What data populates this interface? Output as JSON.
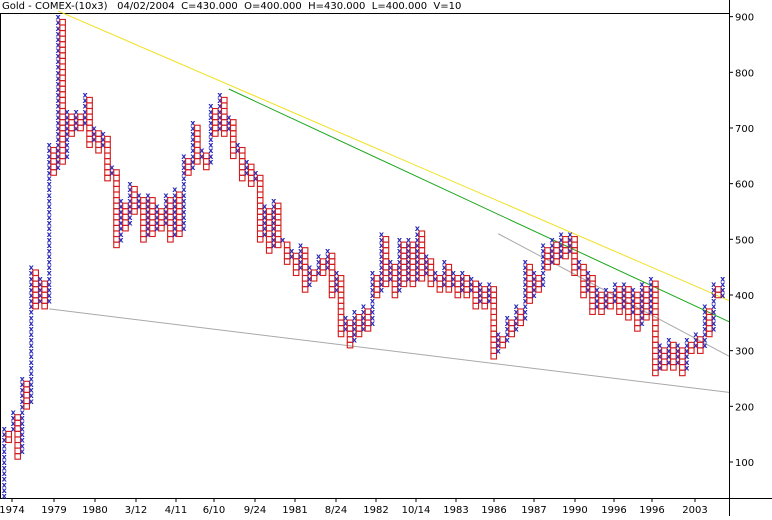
{
  "header": {
    "symbol": "Gold - COMEX-(10x3)",
    "date": "04/02/2004",
    "close": "C=430.000",
    "open": "O=400.000",
    "high": "H=430.000",
    "low": "L=400.000",
    "volume": "V=10"
  },
  "chart_data": {
    "type": "point-and-figure",
    "title": "Gold - COMEX-(10x3)",
    "box_size": 10,
    "reversal": 3,
    "x_tick_labels": [
      "1974",
      "1979",
      "1980",
      "3/12",
      "4/11",
      "6/10",
      "9/24",
      "1981",
      "8/24",
      "1982",
      "10/14",
      "1983",
      "1986",
      "1987",
      "1990",
      "1996",
      "1996",
      "2003"
    ],
    "y_ticks": [
      100,
      200,
      300,
      400,
      500,
      600,
      700,
      800,
      900
    ],
    "ylim": [
      30,
      930
    ],
    "colors": {
      "x": "#2b2bb8",
      "o": "#d41a1a",
      "yellow_trendline": "#f0e020",
      "green_trendline": "#1aa61a",
      "gray_trendline": "#a8a8a8"
    },
    "columns": [
      {
        "type": "X",
        "low": 40,
        "high": 160
      },
      {
        "type": "O",
        "low": 140,
        "high": 150
      },
      {
        "type": "X",
        "low": 160,
        "high": 190
      },
      {
        "type": "O",
        "low": 110,
        "high": 180
      },
      {
        "type": "X",
        "low": 120,
        "high": 250
      },
      {
        "type": "O",
        "low": 200,
        "high": 240
      },
      {
        "type": "X",
        "low": 210,
        "high": 450
      },
      {
        "type": "O",
        "low": 380,
        "high": 440
      },
      {
        "type": "X",
        "low": 390,
        "high": 430
      },
      {
        "type": "O",
        "low": 380,
        "high": 420
      },
      {
        "type": "X",
        "low": 390,
        "high": 670
      },
      {
        "type": "O",
        "low": 620,
        "high": 660
      },
      {
        "type": "X",
        "low": 630,
        "high": 900
      },
      {
        "type": "O",
        "low": 640,
        "high": 890
      },
      {
        "type": "X",
        "low": 650,
        "high": 730
      },
      {
        "type": "O",
        "low": 690,
        "high": 720
      },
      {
        "type": "X",
        "low": 700,
        "high": 730
      },
      {
        "type": "O",
        "low": 700,
        "high": 720
      },
      {
        "type": "X",
        "low": 710,
        "high": 760
      },
      {
        "type": "O",
        "low": 670,
        "high": 750
      },
      {
        "type": "X",
        "low": 680,
        "high": 700
      },
      {
        "type": "O",
        "low": 660,
        "high": 690
      },
      {
        "type": "X",
        "low": 670,
        "high": 690
      },
      {
        "type": "O",
        "low": 610,
        "high": 680
      },
      {
        "type": "X",
        "low": 620,
        "high": 630
      },
      {
        "type": "O",
        "low": 490,
        "high": 620
      },
      {
        "type": "X",
        "low": 500,
        "high": 570
      },
      {
        "type": "O",
        "low": 520,
        "high": 560
      },
      {
        "type": "X",
        "low": 530,
        "high": 600
      },
      {
        "type": "O",
        "low": 550,
        "high": 590
      },
      {
        "type": "X",
        "low": 560,
        "high": 580
      },
      {
        "type": "O",
        "low": 500,
        "high": 570
      },
      {
        "type": "X",
        "low": 510,
        "high": 580
      },
      {
        "type": "O",
        "low": 510,
        "high": 570
      },
      {
        "type": "X",
        "low": 520,
        "high": 560
      },
      {
        "type": "O",
        "low": 520,
        "high": 550
      },
      {
        "type": "X",
        "low": 530,
        "high": 580
      },
      {
        "type": "O",
        "low": 500,
        "high": 570
      },
      {
        "type": "X",
        "low": 510,
        "high": 590
      },
      {
        "type": "O",
        "low": 510,
        "high": 580
      },
      {
        "type": "X",
        "low": 520,
        "high": 650
      },
      {
        "type": "O",
        "low": 620,
        "high": 640
      },
      {
        "type": "X",
        "low": 630,
        "high": 710
      },
      {
        "type": "O",
        "low": 640,
        "high": 700
      },
      {
        "type": "X",
        "low": 650,
        "high": 660
      },
      {
        "type": "O",
        "low": 630,
        "high": 650
      },
      {
        "type": "X",
        "low": 640,
        "high": 740
      },
      {
        "type": "O",
        "low": 690,
        "high": 730
      },
      {
        "type": "X",
        "low": 700,
        "high": 760
      },
      {
        "type": "O",
        "low": 690,
        "high": 750
      },
      {
        "type": "X",
        "low": 700,
        "high": 720
      },
      {
        "type": "O",
        "low": 650,
        "high": 710
      },
      {
        "type": "X",
        "low": 660,
        "high": 670
      },
      {
        "type": "O",
        "low": 610,
        "high": 660
      },
      {
        "type": "X",
        "low": 620,
        "high": 640
      },
      {
        "type": "O",
        "low": 600,
        "high": 630
      },
      {
        "type": "X",
        "low": 610,
        "high": 620
      },
      {
        "type": "O",
        "low": 500,
        "high": 610
      },
      {
        "type": "X",
        "low": 510,
        "high": 560
      },
      {
        "type": "O",
        "low": 480,
        "high": 550
      },
      {
        "type": "X",
        "low": 490,
        "high": 570
      },
      {
        "type": "O",
        "low": 490,
        "high": 560
      },
      {
        "type": "X",
        "low": 500,
        "high": 500
      },
      {
        "type": "O",
        "low": 460,
        "high": 490
      },
      {
        "type": "X",
        "low": 470,
        "high": 480
      },
      {
        "type": "O",
        "low": 440,
        "high": 470
      },
      {
        "type": "X",
        "low": 450,
        "high": 490
      },
      {
        "type": "O",
        "low": 410,
        "high": 480
      },
      {
        "type": "X",
        "low": 420,
        "high": 450
      },
      {
        "type": "O",
        "low": 430,
        "high": 440
      },
      {
        "type": "X",
        "low": 440,
        "high": 470
      },
      {
        "type": "O",
        "low": 440,
        "high": 460
      },
      {
        "type": "X",
        "low": 450,
        "high": 480
      },
      {
        "type": "O",
        "low": 400,
        "high": 470
      },
      {
        "type": "X",
        "low": 410,
        "high": 440
      },
      {
        "type": "O",
        "low": 330,
        "high": 430
      },
      {
        "type": "X",
        "low": 340,
        "high": 360
      },
      {
        "type": "O",
        "low": 310,
        "high": 350
      },
      {
        "type": "X",
        "low": 320,
        "high": 370
      },
      {
        "type": "O",
        "low": 330,
        "high": 360
      },
      {
        "type": "X",
        "low": 340,
        "high": 380
      },
      {
        "type": "O",
        "low": 340,
        "high": 370
      },
      {
        "type": "X",
        "low": 350,
        "high": 440
      },
      {
        "type": "O",
        "low": 400,
        "high": 430
      },
      {
        "type": "X",
        "low": 410,
        "high": 510
      },
      {
        "type": "O",
        "low": 420,
        "high": 500
      },
      {
        "type": "X",
        "low": 430,
        "high": 460
      },
      {
        "type": "O",
        "low": 400,
        "high": 450
      },
      {
        "type": "X",
        "low": 410,
        "high": 500
      },
      {
        "type": "O",
        "low": 420,
        "high": 490
      },
      {
        "type": "X",
        "low": 430,
        "high": 500
      },
      {
        "type": "O",
        "low": 420,
        "high": 490
      },
      {
        "type": "X",
        "low": 430,
        "high": 520
      },
      {
        "type": "O",
        "low": 430,
        "high": 510
      },
      {
        "type": "X",
        "low": 440,
        "high": 470
      },
      {
        "type": "O",
        "low": 420,
        "high": 460
      },
      {
        "type": "X",
        "low": 430,
        "high": 440
      },
      {
        "type": "O",
        "low": 410,
        "high": 430
      },
      {
        "type": "X",
        "low": 420,
        "high": 460
      },
      {
        "type": "O",
        "low": 410,
        "high": 450
      },
      {
        "type": "X",
        "low": 420,
        "high": 440
      },
      {
        "type": "O",
        "low": 400,
        "high": 430
      },
      {
        "type": "X",
        "low": 410,
        "high": 440
      },
      {
        "type": "O",
        "low": 400,
        "high": 430
      },
      {
        "type": "X",
        "low": 410,
        "high": 430
      },
      {
        "type": "O",
        "low": 380,
        "high": 420
      },
      {
        "type": "X",
        "low": 390,
        "high": 420
      },
      {
        "type": "O",
        "low": 380,
        "high": 410
      },
      {
        "type": "X",
        "low": 390,
        "high": 420
      },
      {
        "type": "O",
        "low": 290,
        "high": 410
      },
      {
        "type": "X",
        "low": 300,
        "high": 330
      },
      {
        "type": "O",
        "low": 310,
        "high": 320
      },
      {
        "type": "X",
        "low": 320,
        "high": 360
      },
      {
        "type": "O",
        "low": 330,
        "high": 350
      },
      {
        "type": "X",
        "low": 340,
        "high": 380
      },
      {
        "type": "O",
        "low": 350,
        "high": 370
      },
      {
        "type": "X",
        "low": 360,
        "high": 460
      },
      {
        "type": "O",
        "low": 390,
        "high": 450
      },
      {
        "type": "X",
        "low": 400,
        "high": 440
      },
      {
        "type": "O",
        "low": 410,
        "high": 430
      },
      {
        "type": "X",
        "low": 420,
        "high": 490
      },
      {
        "type": "O",
        "low": 450,
        "high": 480
      },
      {
        "type": "X",
        "low": 460,
        "high": 500
      },
      {
        "type": "O",
        "low": 460,
        "high": 490
      },
      {
        "type": "X",
        "low": 470,
        "high": 510
      },
      {
        "type": "O",
        "low": 470,
        "high": 500
      },
      {
        "type": "X",
        "low": 480,
        "high": 510
      },
      {
        "type": "O",
        "low": 440,
        "high": 500
      },
      {
        "type": "X",
        "low": 450,
        "high": 460
      },
      {
        "type": "O",
        "low": 400,
        "high": 450
      },
      {
        "type": "X",
        "low": 410,
        "high": 440
      },
      {
        "type": "O",
        "low": 370,
        "high": 430
      },
      {
        "type": "X",
        "low": 380,
        "high": 410
      },
      {
        "type": "O",
        "low": 370,
        "high": 400
      },
      {
        "type": "X",
        "low": 380,
        "high": 410
      },
      {
        "type": "O",
        "low": 380,
        "high": 400
      },
      {
        "type": "X",
        "low": 390,
        "high": 420
      },
      {
        "type": "O",
        "low": 370,
        "high": 410
      },
      {
        "type": "X",
        "low": 380,
        "high": 420
      },
      {
        "type": "O",
        "low": 360,
        "high": 410
      },
      {
        "type": "X",
        "low": 370,
        "high": 410
      },
      {
        "type": "O",
        "low": 340,
        "high": 400
      },
      {
        "type": "X",
        "low": 350,
        "high": 420
      },
      {
        "type": "O",
        "low": 360,
        "high": 410
      },
      {
        "type": "X",
        "low": 370,
        "high": 430
      },
      {
        "type": "O",
        "low": 260,
        "high": 420
      },
      {
        "type": "X",
        "low": 270,
        "high": 310
      },
      {
        "type": "O",
        "low": 270,
        "high": 300
      },
      {
        "type": "X",
        "low": 280,
        "high": 320
      },
      {
        "type": "O",
        "low": 270,
        "high": 310
      },
      {
        "type": "X",
        "low": 280,
        "high": 310
      },
      {
        "type": "O",
        "low": 260,
        "high": 300
      },
      {
        "type": "X",
        "low": 270,
        "high": 320
      },
      {
        "type": "O",
        "low": 300,
        "high": 310
      },
      {
        "type": "X",
        "low": 310,
        "high": 330
      },
      {
        "type": "O",
        "low": 300,
        "high": 320
      },
      {
        "type": "X",
        "low": 310,
        "high": 380
      },
      {
        "type": "O",
        "low": 330,
        "high": 370
      },
      {
        "type": "X",
        "low": 340,
        "high": 420
      },
      {
        "type": "O",
        "low": 400,
        "high": 410
      },
      {
        "type": "X",
        "low": 400,
        "high": 430
      }
    ],
    "trendlines": [
      {
        "name": "yellow",
        "x0": 12,
        "y0": 910,
        "x1": 179,
        "y1": 390
      },
      {
        "name": "green",
        "x0": 50,
        "y0": 770,
        "x1": 179,
        "y1": 352
      },
      {
        "name": "gray-upper",
        "x0": 110,
        "y0": 510,
        "x1": 179,
        "y1": 290
      },
      {
        "name": "gray-lower",
        "x0": 10,
        "y0": 375,
        "x1": 179,
        "y1": 225
      }
    ],
    "grid": false
  }
}
